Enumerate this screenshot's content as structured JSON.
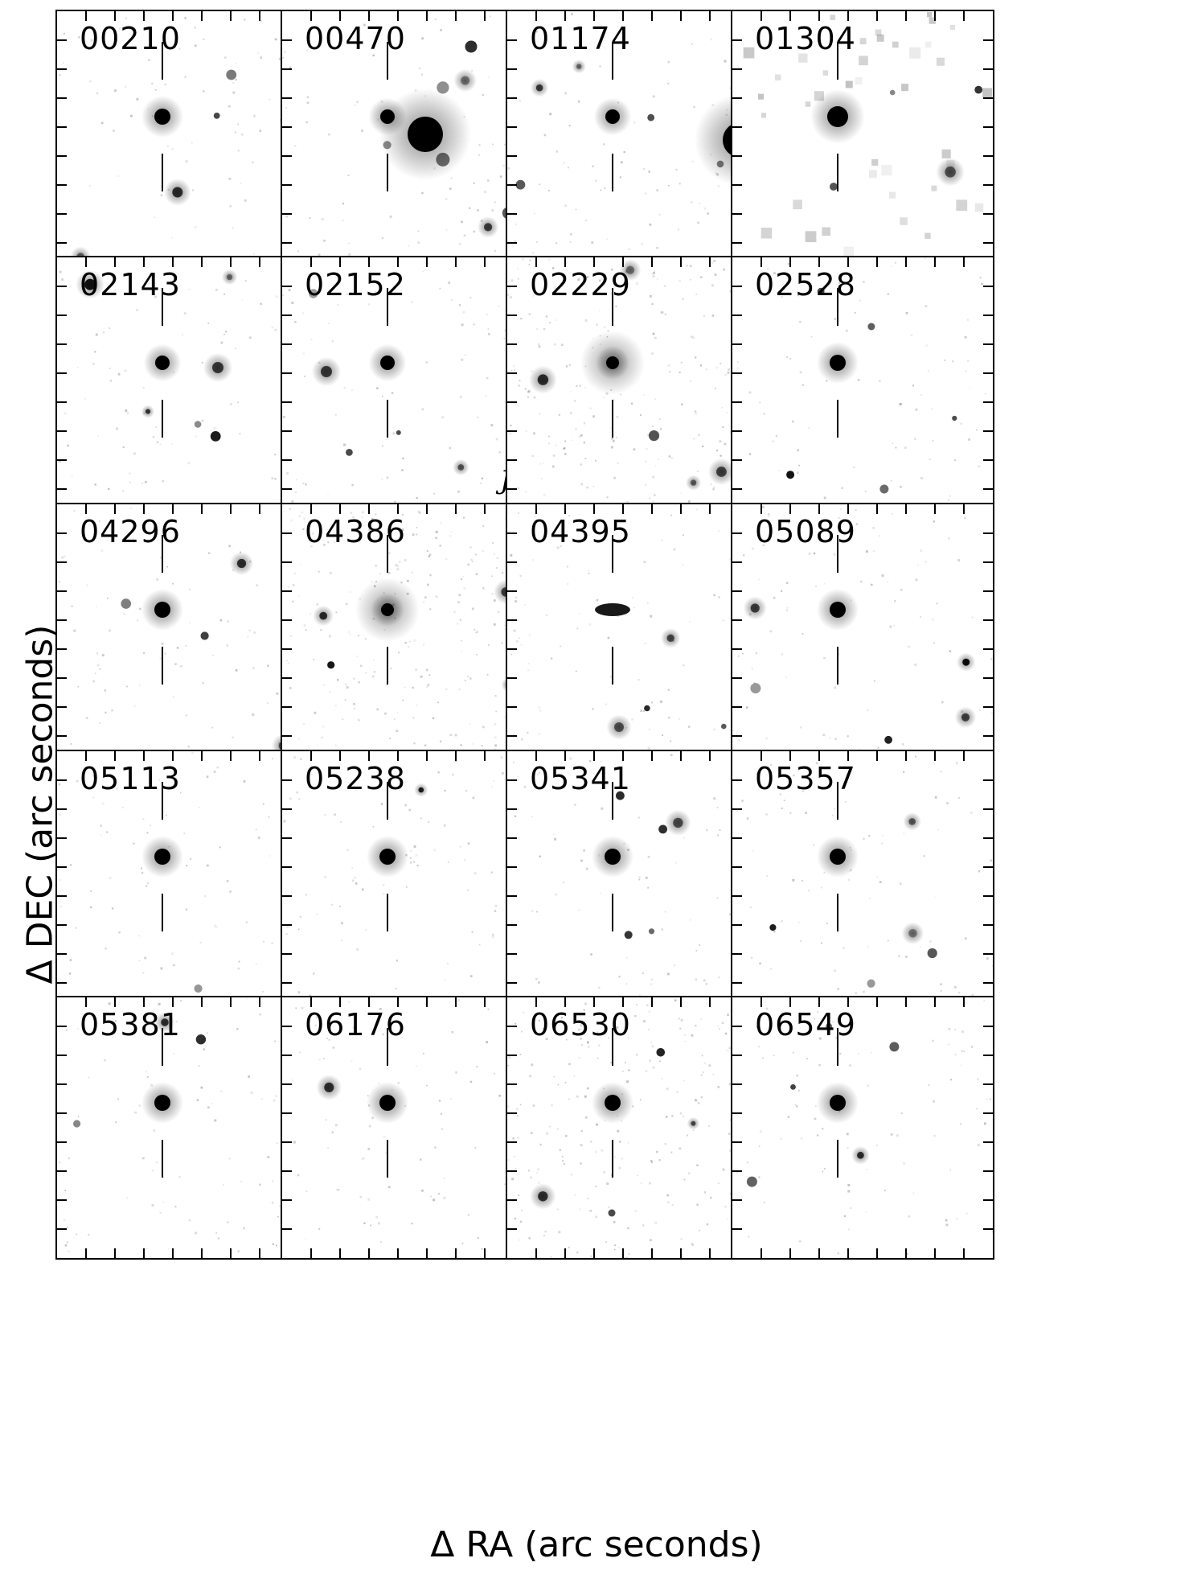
{
  "figure": {
    "xlabel": "Δ RA (arc seconds)",
    "ylabel": "Δ DEC (arc seconds)"
  },
  "panels": [
    {
      "id": "00210",
      "field": "sparse"
    },
    {
      "id": "00470",
      "field": "bright-neighbor"
    },
    {
      "id": "01174",
      "field": "bright-neighbor-right"
    },
    {
      "id": "01304",
      "field": "coarse"
    },
    {
      "id": "02143",
      "field": "pair"
    },
    {
      "id": "02152",
      "field": "pair",
      "band": "J"
    },
    {
      "id": "02229",
      "field": "diffuse"
    },
    {
      "id": "02528",
      "field": "sparse"
    },
    {
      "id": "04296",
      "field": "sparse"
    },
    {
      "id": "04386",
      "field": "diffuse"
    },
    {
      "id": "04395",
      "field": "elongated"
    },
    {
      "id": "05089",
      "field": "sparse"
    },
    {
      "id": "05113",
      "field": "clean"
    },
    {
      "id": "05238",
      "field": "clean"
    },
    {
      "id": "05341",
      "field": "sparse"
    },
    {
      "id": "05357",
      "field": "sparse"
    },
    {
      "id": "05381",
      "field": "sparse"
    },
    {
      "id": "06176",
      "field": "clean"
    },
    {
      "id": "06530",
      "field": "noisy"
    },
    {
      "id": "06549",
      "field": "sparse"
    }
  ]
}
